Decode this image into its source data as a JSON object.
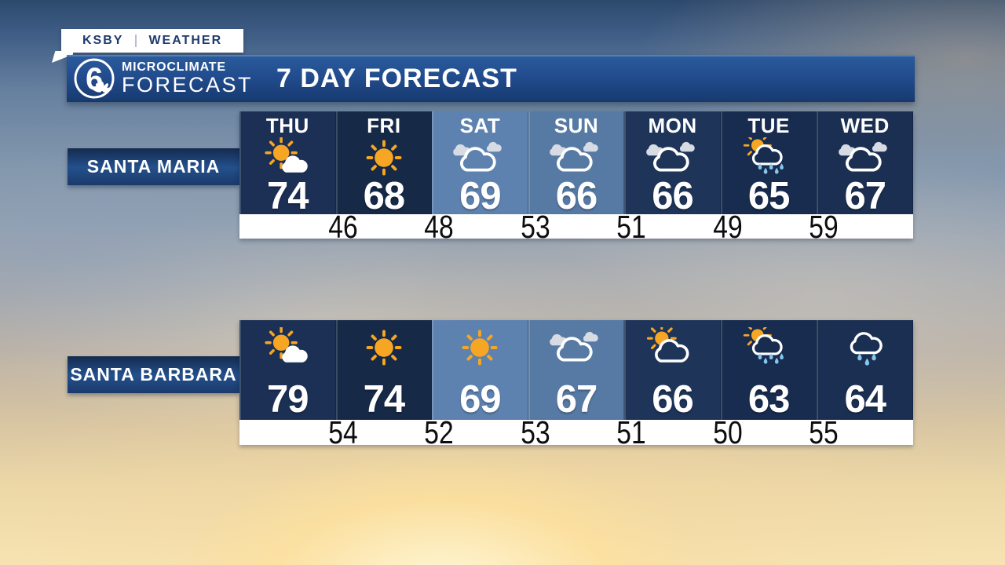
{
  "station_tag": {
    "station": "KSBY",
    "section": "WEATHER"
  },
  "banner": {
    "channel_number": "6",
    "logo_top": "MICROCLIMATE",
    "logo_bottom": "FORECAST",
    "title": "7 DAY FORECAST"
  },
  "days": [
    "THU",
    "FRI",
    "SAT",
    "SUN",
    "MON",
    "TUE",
    "WED"
  ],
  "locations": [
    {
      "name": "SANTA MARIA",
      "show_day_labels": true,
      "forecast": [
        {
          "day": "THU",
          "icon": "mostly-sunny",
          "high": 74
        },
        {
          "day": "FRI",
          "icon": "sunny",
          "high": 68
        },
        {
          "day": "SAT",
          "icon": "cloudy",
          "high": 69
        },
        {
          "day": "SUN",
          "icon": "cloudy",
          "high": 66
        },
        {
          "day": "MON",
          "icon": "cloudy",
          "high": 66
        },
        {
          "day": "TUE",
          "icon": "rain-sun",
          "high": 65
        },
        {
          "day": "WED",
          "icon": "cloudy",
          "high": 67
        }
      ],
      "lows": [
        46,
        48,
        53,
        51,
        49,
        59
      ]
    },
    {
      "name": "SANTA BARBARA",
      "show_day_labels": false,
      "forecast": [
        {
          "day": "THU",
          "icon": "mostly-sunny",
          "high": 79
        },
        {
          "day": "FRI",
          "icon": "sunny",
          "high": 74
        },
        {
          "day": "SAT",
          "icon": "sunny",
          "high": 69
        },
        {
          "day": "SUN",
          "icon": "cloudy",
          "high": 67
        },
        {
          "day": "MON",
          "icon": "partly-sunny",
          "high": 66
        },
        {
          "day": "TUE",
          "icon": "rain-sun",
          "high": 63
        },
        {
          "day": "WED",
          "icon": "rain",
          "high": 64
        }
      ],
      "lows": [
        54,
        52,
        53,
        51,
        50,
        55
      ]
    }
  ],
  "colors": {
    "sun": "#f6a623",
    "rain_drop": "#85c6ef",
    "small_cloud": "#d7dce4",
    "cloud_outline": "#ffffff",
    "banner_blue": "#20498a",
    "label_blue": "#23508c",
    "tag_text_navy": "#1e3a6d",
    "lows_text": "#0d0d0d",
    "high_text": "#ffffff",
    "column_backgrounds": [
      "#1c3055",
      "#162947",
      "#5e82b0",
      "#567aa4",
      "#1e3459",
      "#182c4f",
      "#1b2f53"
    ]
  },
  "chart_data": {
    "type": "table",
    "title": "7 DAY FORECAST",
    "columns": [
      "THU",
      "FRI",
      "SAT",
      "SUN",
      "MON",
      "TUE",
      "WED"
    ],
    "rows": [
      {
        "location": "SANTA MARIA",
        "highs": [
          74,
          68,
          69,
          66,
          66,
          65,
          67
        ],
        "overnight_lows_between_days": [
          46,
          48,
          53,
          51,
          49,
          59
        ],
        "conditions": [
          "mostly-sunny",
          "sunny",
          "cloudy",
          "cloudy",
          "cloudy",
          "rain-sun",
          "cloudy"
        ]
      },
      {
        "location": "SANTA BARBARA",
        "highs": [
          79,
          74,
          69,
          67,
          66,
          63,
          64
        ],
        "overnight_lows_between_days": [
          54,
          52,
          53,
          51,
          50,
          55
        ],
        "conditions": [
          "mostly-sunny",
          "sunny",
          "sunny",
          "cloudy",
          "partly-sunny",
          "rain-sun",
          "rain"
        ]
      }
    ]
  }
}
